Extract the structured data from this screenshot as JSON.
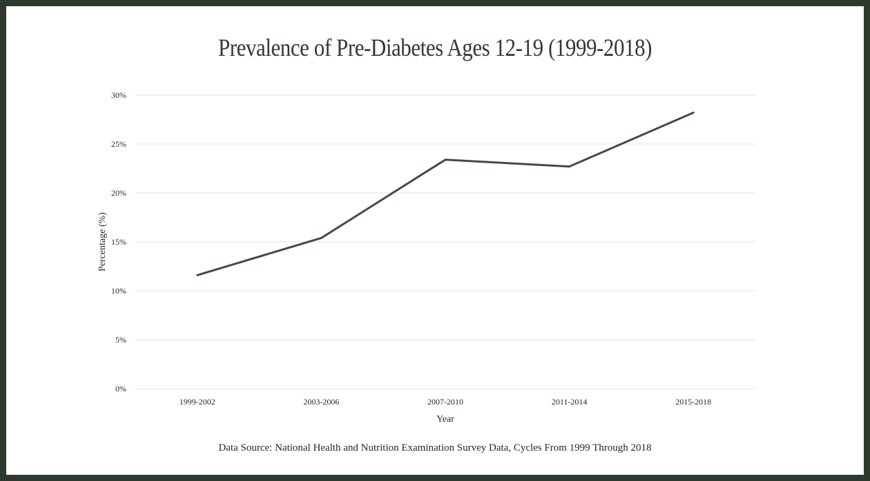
{
  "chart_data": {
    "type": "line",
    "title": "Prevalence of Pre-Diabetes Ages 12-19 (1999-2018)",
    "xlabel": "Year",
    "ylabel": "Percentage (%)",
    "categories": [
      "1999-2002",
      "2003-2006",
      "2007-2010",
      "2011-2014",
      "2015-2018"
    ],
    "series": [
      {
        "values": [
          11.6,
          15.4,
          23.4,
          22.7,
          28.2
        ]
      }
    ],
    "ylim": [
      0,
      30
    ],
    "yticks": [
      0,
      5,
      10,
      15,
      20,
      25,
      30
    ],
    "ytick_labels": [
      "0%",
      "5%",
      "10%",
      "15%",
      "20%",
      "25%",
      "30%"
    ],
    "grid": true,
    "line_color": "#3f4d40",
    "source_note": "Data Source: National Health and Nutrition Examination Survey Data, Cycles From 1999 Through 2018"
  },
  "theme": {
    "frame_color": "#2b3a2d",
    "grid_color": "#e3e3e3",
    "text_color": "#1f2620"
  }
}
